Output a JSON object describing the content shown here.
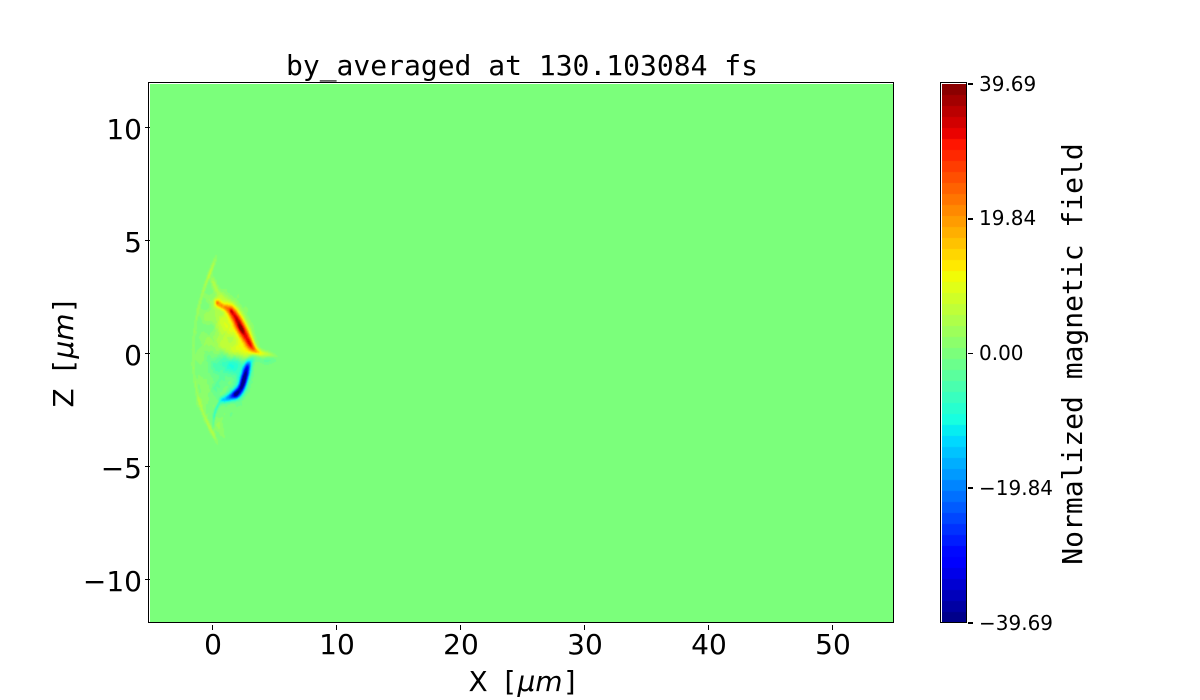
{
  "title": "by_averaged at 130.103084 fs",
  "axes": {
    "xlabel": {
      "pre": "X [",
      "unit": "μm",
      "post": "]"
    },
    "ylabel": {
      "pre": "Z [",
      "unit": "μm",
      "post": "]"
    },
    "xtick_labels": [
      "0",
      "10",
      "20",
      "30",
      "40",
      "50"
    ],
    "ytick_labels": [
      "10",
      "5",
      "0",
      "−5",
      "−10"
    ]
  },
  "colorbar": {
    "label": "Normalized magnetic field",
    "tick_labels": [
      "39.69",
      "19.84",
      "0.00",
      "−19.84",
      "−39.69"
    ]
  },
  "colors": {
    "background": "#ffffff",
    "text": "#000000",
    "spine": "#000000",
    "zero_field_green": "#7bff7b"
  },
  "chart_data": {
    "type": "heatmap",
    "title": "by_averaged at 130.103084 fs",
    "xlabel": "X [μm]",
    "ylabel": "Z [μm]",
    "xlim": [
      -5,
      55
    ],
    "ylim": [
      -11.92,
      11.92
    ],
    "xticks": [
      0,
      10,
      20,
      30,
      40,
      50
    ],
    "yticks": [
      10,
      5,
      0,
      -5,
      -10
    ],
    "time_label": "130.103084 fs",
    "field_name": "by_averaged",
    "colorbar": {
      "label": "Normalized magnetic field",
      "ticks": [
        39.69,
        19.84,
        0.0,
        -19.84,
        -39.69
      ],
      "vmin": -39.69,
      "vmax": 39.69,
      "cmap": "jet",
      "levels": 49
    },
    "background_value": 0,
    "noise_texture": {
      "amp": 1.1,
      "kx": [
        4.7,
        8.9,
        15.1
      ],
      "kz": [
        5.9,
        11.3,
        18.7
      ],
      "phases": [
        0.5,
        2.1,
        4.2
      ],
      "center": [
        0.9,
        0.0
      ],
      "sx": 1.6,
      "sz": 2.7
    },
    "blobs": [
      {
        "x": 2.0,
        "z": 1.25,
        "sx": 0.85,
        "sz": 0.45,
        "rot": -32,
        "amp": 5
      },
      {
        "x": 1.3,
        "z": 1.3,
        "sx": 0.8,
        "sz": 0.35,
        "rot": -32,
        "amp": 4
      },
      {
        "x": 0.45,
        "z": 2.22,
        "sx": 0.2,
        "sz": 0.14,
        "rot": -15,
        "amp": 15
      },
      {
        "x": 0.78,
        "z": 2.1,
        "sx": 0.17,
        "sz": 0.11,
        "rot": -25,
        "amp": 12
      },
      {
        "x": 1.12,
        "z": 2.03,
        "sx": 0.18,
        "sz": 0.12,
        "rot": -20,
        "amp": 13
      },
      {
        "x": 1.55,
        "z": 1.85,
        "sx": 0.26,
        "sz": 0.19,
        "rot": -25,
        "amp": 18
      },
      {
        "x": 1.9,
        "z": 1.6,
        "sx": 0.26,
        "sz": 0.21,
        "rot": -35,
        "amp": 16
      },
      {
        "x": 2.2,
        "z": 1.3,
        "sx": 0.3,
        "sz": 0.23,
        "rot": -35,
        "amp": 18
      },
      {
        "x": 2.5,
        "z": 0.98,
        "sx": 0.34,
        "sz": 0.26,
        "rot": -33,
        "amp": 18
      },
      {
        "x": 2.85,
        "z": 0.65,
        "sx": 0.3,
        "sz": 0.22,
        "rot": -38,
        "amp": 17
      },
      {
        "x": 3.1,
        "z": 0.42,
        "sx": 0.24,
        "sz": 0.16,
        "rot": -40,
        "amp": 12
      },
      {
        "x": 3.35,
        "z": 0.22,
        "sx": 0.26,
        "sz": 0.14,
        "rot": -35,
        "amp": 8
      },
      {
        "x": 3.6,
        "z": 0.1,
        "sx": 0.3,
        "sz": 0.12,
        "rot": -25,
        "amp": 6
      },
      {
        "x": 3.85,
        "z": 0.05,
        "sx": 0.3,
        "sz": 0.1,
        "rot": -15,
        "amp": 4.5
      },
      {
        "x": 4.15,
        "z": 0.0,
        "sx": 0.4,
        "sz": 0.09,
        "rot": -8,
        "amp": 4
      },
      {
        "x": 4.7,
        "z": -0.05,
        "sx": 0.4,
        "sz": 0.08,
        "rot": -10,
        "amp": 3.5
      },
      {
        "x": 1.55,
        "z": 1.88,
        "sx": 0.1,
        "sz": 0.07,
        "rot": -25,
        "amp": 6
      },
      {
        "x": 2.45,
        "z": 1.02,
        "sx": 0.14,
        "sz": 0.1,
        "rot": -33,
        "amp": 6
      },
      {
        "x": 2.25,
        "z": 1.18,
        "sx": 0.1,
        "sz": 0.08,
        "rot": -35,
        "amp": 5
      },
      {
        "x": 0.42,
        "z": 2.26,
        "sx": 0.08,
        "sz": 0.06,
        "rot": -15,
        "amp": 5
      },
      {
        "x": 2.3,
        "z": -1.1,
        "sx": 0.7,
        "sz": 0.45,
        "rot": 55,
        "amp": -4
      },
      {
        "x": 1.7,
        "z": -0.6,
        "sx": 0.75,
        "sz": 0.3,
        "rot": 0,
        "amp": -3.5
      },
      {
        "x": 3.45,
        "z": -0.18,
        "sx": 0.3,
        "sz": 0.14,
        "rot": 0,
        "amp": -4
      },
      {
        "x": 3.0,
        "z": -0.45,
        "sx": 0.3,
        "sz": 0.15,
        "rot": 35,
        "amp": -8
      },
      {
        "x": 2.85,
        "z": -0.7,
        "sx": 0.28,
        "sz": 0.18,
        "rot": 65,
        "amp": -13
      },
      {
        "x": 2.7,
        "z": -0.95,
        "sx": 0.3,
        "sz": 0.19,
        "rot": 65,
        "amp": -16
      },
      {
        "x": 2.55,
        "z": -1.2,
        "sx": 0.3,
        "sz": 0.19,
        "rot": 63,
        "amp": -17
      },
      {
        "x": 2.42,
        "z": -1.42,
        "sx": 0.26,
        "sz": 0.16,
        "rot": 60,
        "amp": -16
      },
      {
        "x": 2.15,
        "z": -1.65,
        "sx": 0.28,
        "sz": 0.16,
        "rot": 30,
        "amp": -17
      },
      {
        "x": 1.95,
        "z": -1.78,
        "sx": 0.25,
        "sz": 0.15,
        "rot": 10,
        "amp": -18
      },
      {
        "x": 1.6,
        "z": -1.88,
        "sx": 0.25,
        "sz": 0.13,
        "rot": 8,
        "amp": -14
      },
      {
        "x": 1.25,
        "z": -1.98,
        "sx": 0.25,
        "sz": 0.12,
        "rot": 5,
        "amp": -11
      },
      {
        "x": 0.9,
        "z": -2.05,
        "sx": 0.22,
        "sz": 0.1,
        "rot": -5,
        "amp": -8
      },
      {
        "x": 0.55,
        "z": -2.25,
        "sx": 0.25,
        "sz": 0.08,
        "rot": 40,
        "amp": -5
      },
      {
        "x": 0.3,
        "z": -2.55,
        "sx": 0.3,
        "sz": 0.07,
        "rot": 55,
        "amp": -4.5
      },
      {
        "x": 0.15,
        "z": -2.95,
        "sx": 0.3,
        "sz": 0.06,
        "rot": 75,
        "amp": -4
      },
      {
        "x": 1.95,
        "z": -1.8,
        "sx": 0.14,
        "sz": 0.09,
        "rot": 10,
        "amp": -6
      },
      {
        "x": 2.6,
        "z": -1.1,
        "sx": 0.12,
        "sz": 0.09,
        "rot": 60,
        "amp": -4
      },
      {
        "x": 4.2,
        "z": -0.32,
        "sx": 0.35,
        "sz": 0.1,
        "rot": -10,
        "amp": -2.5
      },
      {
        "x": 4.8,
        "z": -0.25,
        "sx": 0.3,
        "sz": 0.1,
        "rot": 0,
        "amp": -2.5
      },
      {
        "x": 0.0,
        "z": 3.78,
        "sx": 0.38,
        "sz": 0.08,
        "rot": 55,
        "amp": 5.0
      },
      {
        "x": -0.42,
        "z": 3.2,
        "sx": 0.38,
        "sz": 0.08,
        "rot": 57,
        "amp": 3.8
      },
      {
        "x": -0.8,
        "z": 2.58,
        "sx": 0.38,
        "sz": 0.08,
        "rot": 62,
        "amp": 2.8
      },
      {
        "x": -1.1,
        "z": 1.93,
        "sx": 0.38,
        "sz": 0.08,
        "rot": 68,
        "amp": 2.1
      },
      {
        "x": -1.32,
        "z": 1.28,
        "sx": 0.38,
        "sz": 0.08,
        "rot": 75,
        "amp": 1.7
      },
      {
        "x": -1.46,
        "z": 0.63,
        "sx": 0.38,
        "sz": 0.08,
        "rot": 83,
        "amp": 1.5
      },
      {
        "x": -1.52,
        "z": -0.02,
        "sx": 0.38,
        "sz": 0.08,
        "rot": 90,
        "amp": 1.5
      },
      {
        "x": -1.48,
        "z": -0.67,
        "sx": 0.38,
        "sz": 0.08,
        "rot": -83,
        "amp": 1.5
      },
      {
        "x": -1.34,
        "z": -1.32,
        "sx": 0.38,
        "sz": 0.08,
        "rot": -75,
        "amp": 1.7
      },
      {
        "x": -1.1,
        "z": -1.94,
        "sx": 0.38,
        "sz": 0.08,
        "rot": -68,
        "amp": 2.1
      },
      {
        "x": -0.78,
        "z": -2.54,
        "sx": 0.38,
        "sz": 0.08,
        "rot": -61,
        "amp": 2.8
      },
      {
        "x": -0.36,
        "z": -3.08,
        "sx": 0.38,
        "sz": 0.08,
        "rot": -56,
        "amp": 3.8
      },
      {
        "x": 0.06,
        "z": -3.5,
        "sx": 0.38,
        "sz": 0.08,
        "rot": -52,
        "amp": 5.0
      },
      {
        "x": 0.15,
        "z": 3.1,
        "sx": 0.3,
        "sz": 0.12,
        "rot": -55,
        "amp": 4
      },
      {
        "x": 0.55,
        "z": 2.6,
        "sx": 0.35,
        "sz": 0.15,
        "rot": -40,
        "amp": 3
      },
      {
        "x": 1.1,
        "z": 2.35,
        "sx": 0.45,
        "sz": 0.22,
        "rot": -25,
        "amp": 3.5
      },
      {
        "x": 1.9,
        "z": 1.9,
        "sx": 0.5,
        "sz": 0.25,
        "rot": -25,
        "amp": 3
      },
      {
        "x": -0.55,
        "z": 1.75,
        "sx": 0.35,
        "sz": 0.25,
        "rot": 0,
        "amp": 2.2
      },
      {
        "x": 0.2,
        "z": 1.5,
        "sx": 0.45,
        "sz": 0.3,
        "rot": -15,
        "amp": 3
      },
      {
        "x": 0.9,
        "z": 1.05,
        "sx": 0.4,
        "sz": 0.28,
        "rot": -20,
        "amp": 4.5
      },
      {
        "x": -0.35,
        "z": 0.65,
        "sx": 0.4,
        "sz": 0.3,
        "rot": 0,
        "amp": 2.2
      },
      {
        "x": 0.55,
        "z": 0.42,
        "sx": 0.45,
        "sz": 0.3,
        "rot": 0,
        "amp": 4
      },
      {
        "x": 1.45,
        "z": 0.22,
        "sx": 0.45,
        "sz": 0.26,
        "rot": -10,
        "amp": 5.5
      },
      {
        "x": 2.3,
        "z": 0.08,
        "sx": 0.45,
        "sz": 0.28,
        "rot": -15,
        "amp": 8
      },
      {
        "x": 3.05,
        "z": 0.15,
        "sx": 0.4,
        "sz": 0.26,
        "rot": -25,
        "amp": 8
      },
      {
        "x": -0.85,
        "z": -0.15,
        "sx": 0.35,
        "sz": 0.3,
        "rot": 0,
        "amp": 2
      },
      {
        "x": 0.1,
        "z": -0.5,
        "sx": 0.5,
        "sz": 0.35,
        "rot": 0,
        "amp": -2.5
      },
      {
        "x": 1.0,
        "z": -0.5,
        "sx": 0.45,
        "sz": 0.3,
        "rot": 0,
        "amp": -4
      },
      {
        "x": 1.9,
        "z": -0.4,
        "sx": 0.4,
        "sz": 0.25,
        "rot": 10,
        "amp": -4.5
      },
      {
        "x": -0.45,
        "z": -1.3,
        "sx": 0.4,
        "sz": 0.3,
        "rot": 0,
        "amp": 2.2
      },
      {
        "x": 0.35,
        "z": -1.4,
        "sx": 0.4,
        "sz": 0.28,
        "rot": 0,
        "amp": -3
      },
      {
        "x": -0.75,
        "z": -2.1,
        "sx": 0.35,
        "sz": 0.25,
        "rot": 0,
        "amp": 2.4
      },
      {
        "x": 0.6,
        "z": -3.2,
        "sx": 0.35,
        "sz": 0.18,
        "rot": -45,
        "amp": 3
      },
      {
        "x": -0.2,
        "z": 2.3,
        "sx": 0.3,
        "sz": 0.2,
        "rot": 0,
        "amp": 2
      },
      {
        "x": 0.0,
        "z": 1.1,
        "sx": 0.3,
        "sz": 0.2,
        "rot": 0,
        "amp": -2.5
      },
      {
        "x": -0.5,
        "z": 2.1,
        "sx": 0.25,
        "sz": 0.18,
        "rot": 0,
        "amp": -2
      }
    ]
  }
}
